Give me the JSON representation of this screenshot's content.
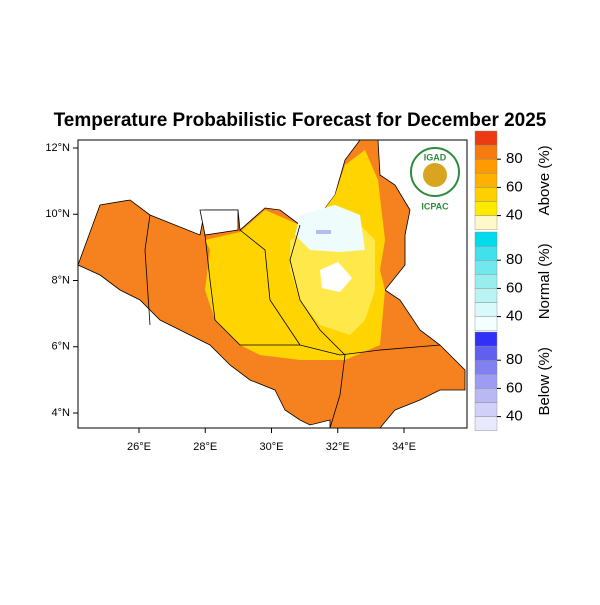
{
  "title": "Temperature Probabilistic Forecast for December 2025",
  "lat_ticks": [
    {
      "value": 12,
      "label": "12°N"
    },
    {
      "value": 10,
      "label": "10°N"
    },
    {
      "value": 8,
      "label": "8°N"
    },
    {
      "value": 6,
      "label": "6°N"
    },
    {
      "value": 4,
      "label": "4°N"
    }
  ],
  "lon_ticks": [
    {
      "value": 26,
      "label": "26°E"
    },
    {
      "value": 28,
      "label": "28°E"
    },
    {
      "value": 30,
      "label": "30°E"
    },
    {
      "value": 32,
      "label": "32°E"
    },
    {
      "value": 34,
      "label": "34°E"
    }
  ],
  "logo": {
    "top": "IGAD",
    "bottom": "ICPAC"
  },
  "legend": [
    {
      "title": "Above (%)",
      "ticks": [
        40,
        60,
        80
      ],
      "colors": [
        "#fff8c8",
        "#ffea00",
        "#ffd000",
        "#ffb000",
        "#ff9a00",
        "#f57a10",
        "#ee3a12"
      ]
    },
    {
      "title": "Normal (%)",
      "ticks": [
        40,
        60,
        80
      ],
      "colors": [
        "#f4ffff",
        "#d8fafa",
        "#b8f4f4",
        "#98eeee",
        "#70e8ee",
        "#40e0ec",
        "#00dcec"
      ]
    },
    {
      "title": "Below (%)",
      "ticks": [
        40,
        60,
        80
      ],
      "colors": [
        "#e8e8ff",
        "#d0d0fa",
        "#b8b8f4",
        "#9c9cf2",
        "#8080f0",
        "#6060f0",
        "#3030f8"
      ]
    }
  ]
}
